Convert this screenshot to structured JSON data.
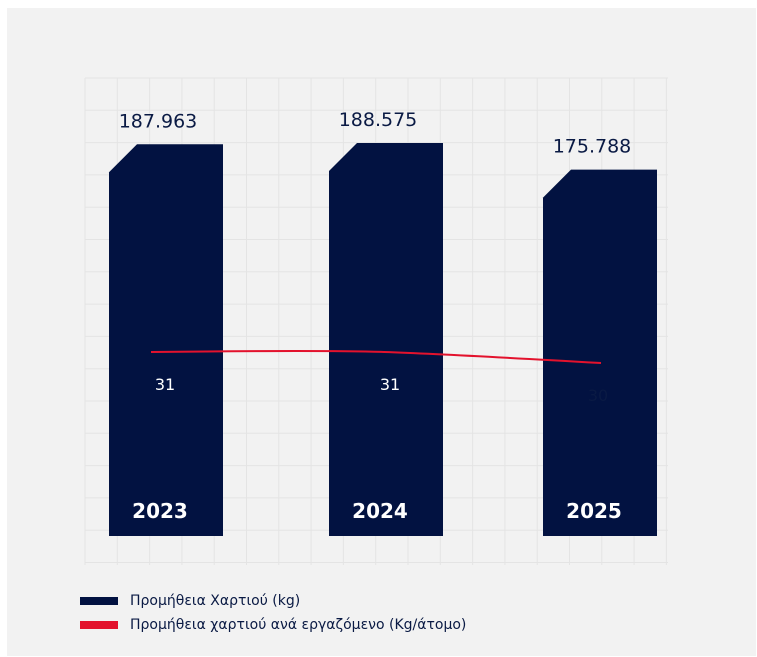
{
  "chart_data": {
    "type": "bar",
    "categories": [
      "2023",
      "2024",
      "2025"
    ],
    "series": [
      {
        "name": "Προμήθεια Χαρτιού (kg)",
        "type": "bar",
        "values": [
          187963,
          188575,
          175788
        ],
        "labels": [
          "187.963",
          "188.575",
          "175.788"
        ],
        "color": "#021241"
      },
      {
        "name": "Προμήθεια χαρτιού ανά εργαζόμενο (Kg/άτομο)",
        "type": "line",
        "values": [
          31,
          31,
          30
        ],
        "labels": [
          "31",
          "31",
          "30"
        ],
        "color": "#e3122d"
      }
    ],
    "grid": true,
    "legend_position": "bottom-left"
  },
  "legend": {
    "items": [
      {
        "label": "Προμήθεια Χαρτιού (kg)",
        "color": "#021241"
      },
      {
        "label": "Προμήθεια χαρτιού ανά εργαζόμενο (Kg/άτομο)",
        "color": "#e3122d"
      }
    ]
  },
  "colors": {
    "panel_background": "#f2f2f2",
    "bar": "#021241",
    "line": "#e3122d",
    "text": "#0a1a44",
    "grid": "#e4e4e4"
  }
}
